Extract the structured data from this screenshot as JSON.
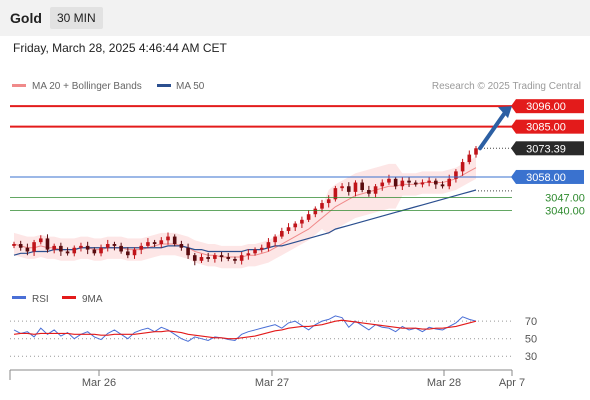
{
  "header": {
    "instrument": "Gold",
    "timeframe": "30 MIN"
  },
  "datetime": "Friday, March 28, 2025 4:46:44 AM CET",
  "colors": {
    "support": "#2f8a2f",
    "resistance": "#e31b1b",
    "pivot": "#3a72cf",
    "bollinger": "#f08a8a",
    "ma50": "#2b4f8f",
    "rsi": "#4a6fd6",
    "rsi_ma": "#e31b1b",
    "candle_up": "#c0141a",
    "candle_down": "#5a0c10",
    "price_tag": "#2a2a2a"
  },
  "chart_data": [
    {
      "type": "candlestick",
      "title": "",
      "legend": [
        {
          "name": "MA 20 + Bollinger Bands",
          "color": "#f08a8a"
        },
        {
          "name": "MA 50",
          "color": "#2b4f8f"
        }
      ],
      "watermark": "Research © 2025 Trading Central",
      "ylim": [
        3000,
        3102
      ],
      "xlim": [
        "2025-03-25T16:00",
        "2025-04-07T00:00"
      ],
      "x_ticks": [
        "Mar 26",
        "Mar 27",
        "Mar 28",
        "Apr 7"
      ],
      "current_price": 3073.39,
      "forecast_target": 3096.0,
      "levels": [
        {
          "value": 3096.0,
          "label": "3096.00",
          "type": "resistance"
        },
        {
          "value": 3085.0,
          "label": "3085.00",
          "type": "resistance"
        },
        {
          "value": 3058.0,
          "label": "3058.00",
          "type": "pivot"
        },
        {
          "value": 3047.0,
          "label": "3047.00",
          "type": "support"
        },
        {
          "value": 3040.0,
          "label": "3040.00",
          "type": "support"
        }
      ],
      "price_close_path": [
        3022,
        3020,
        3018,
        3023,
        3025,
        3019,
        3021,
        3018,
        3017,
        3020,
        3021,
        3019,
        3017,
        3020,
        3022,
        3021,
        3018,
        3016,
        3019,
        3021,
        3023,
        3022,
        3024,
        3026,
        3022,
        3020,
        3016,
        3013,
        3015,
        3014,
        3016,
        3015,
        3014,
        3013,
        3016,
        3017,
        3019,
        3020,
        3023,
        3026,
        3029,
        3031,
        3033,
        3035,
        3038,
        3041,
        3044,
        3046,
        3052,
        3053,
        3050,
        3055,
        3051,
        3049,
        3053,
        3055,
        3057,
        3053,
        3056,
        3055,
        3054,
        3055,
        3056,
        3054,
        3053,
        3057,
        3061,
        3066,
        3070,
        3073.39
      ],
      "ma20_path": [
        3022,
        3021,
        3020,
        3020,
        3021,
        3020,
        3020,
        3019,
        3019,
        3019,
        3020,
        3020,
        3019,
        3019,
        3020,
        3020,
        3020,
        3019,
        3019,
        3019,
        3020,
        3021,
        3022,
        3022,
        3022,
        3021,
        3020,
        3018,
        3017,
        3016,
        3016,
        3015,
        3015,
        3015,
        3015,
        3016,
        3016,
        3017,
        3018,
        3020,
        3022,
        3024,
        3026,
        3028,
        3030,
        3033,
        3036,
        3039,
        3042,
        3044,
        3046,
        3048,
        3049,
        3050,
        3051,
        3052,
        3053,
        3053,
        3054,
        3054,
        3054,
        3055,
        3055,
        3055,
        3055,
        3056,
        3057,
        3059,
        3061,
        3063
      ],
      "ma50_path": [
        3016,
        3017,
        3017,
        3018,
        3018,
        3018,
        3019,
        3019,
        3019,
        3019,
        3020,
        3020,
        3020,
        3020,
        3020,
        3020,
        3020,
        3020,
        3020,
        3020,
        3020,
        3020,
        3020,
        3021,
        3021,
        3021,
        3020,
        3019,
        3019,
        3018,
        3018,
        3018,
        3018,
        3018,
        3018,
        3019,
        3019,
        3019,
        3020,
        3021,
        3021,
        3022,
        3023,
        3024,
        3025,
        3026,
        3027,
        3028,
        3030,
        3031,
        3032,
        3033,
        3034,
        3035,
        3036,
        3037,
        3038,
        3039,
        3040,
        3041,
        3042,
        3043,
        3044,
        3045,
        3046,
        3047,
        3048,
        3049,
        3050,
        3051
      ]
    },
    {
      "type": "line",
      "legend": [
        {
          "name": "RSI",
          "color": "#4a6fd6"
        },
        {
          "name": "9MA",
          "color": "#e31b1b"
        }
      ],
      "ylim": [
        20,
        85
      ],
      "y_ticks": [
        70,
        50,
        30
      ],
      "rsi": [
        60,
        56,
        58,
        52,
        62,
        55,
        60,
        53,
        57,
        50,
        55,
        58,
        52,
        49,
        56,
        60,
        55,
        50,
        57,
        60,
        62,
        58,
        63,
        60,
        55,
        50,
        47,
        52,
        50,
        48,
        52,
        51,
        49,
        48,
        55,
        58,
        60,
        62,
        64,
        66,
        62,
        68,
        70,
        65,
        60,
        66,
        70,
        72,
        76,
        74,
        63,
        70,
        65,
        60,
        66,
        63,
        62,
        58,
        64,
        60,
        62,
        58,
        63,
        61,
        60,
        64,
        68,
        75,
        72,
        70
      ],
      "rsi_ma": [
        55,
        56,
        56,
        55,
        56,
        56,
        56,
        56,
        56,
        55,
        55,
        55,
        55,
        54,
        54,
        55,
        55,
        55,
        55,
        56,
        57,
        58,
        58,
        59,
        58,
        57,
        55,
        54,
        53,
        52,
        51,
        51,
        50,
        50,
        51,
        52,
        53,
        55,
        57,
        59,
        60,
        62,
        63,
        64,
        64,
        65,
        66,
        68,
        70,
        71,
        70,
        69,
        68,
        67,
        66,
        65,
        64,
        63,
        62,
        62,
        62,
        61,
        61,
        62,
        62,
        63,
        64,
        66,
        68,
        70
      ]
    }
  ]
}
